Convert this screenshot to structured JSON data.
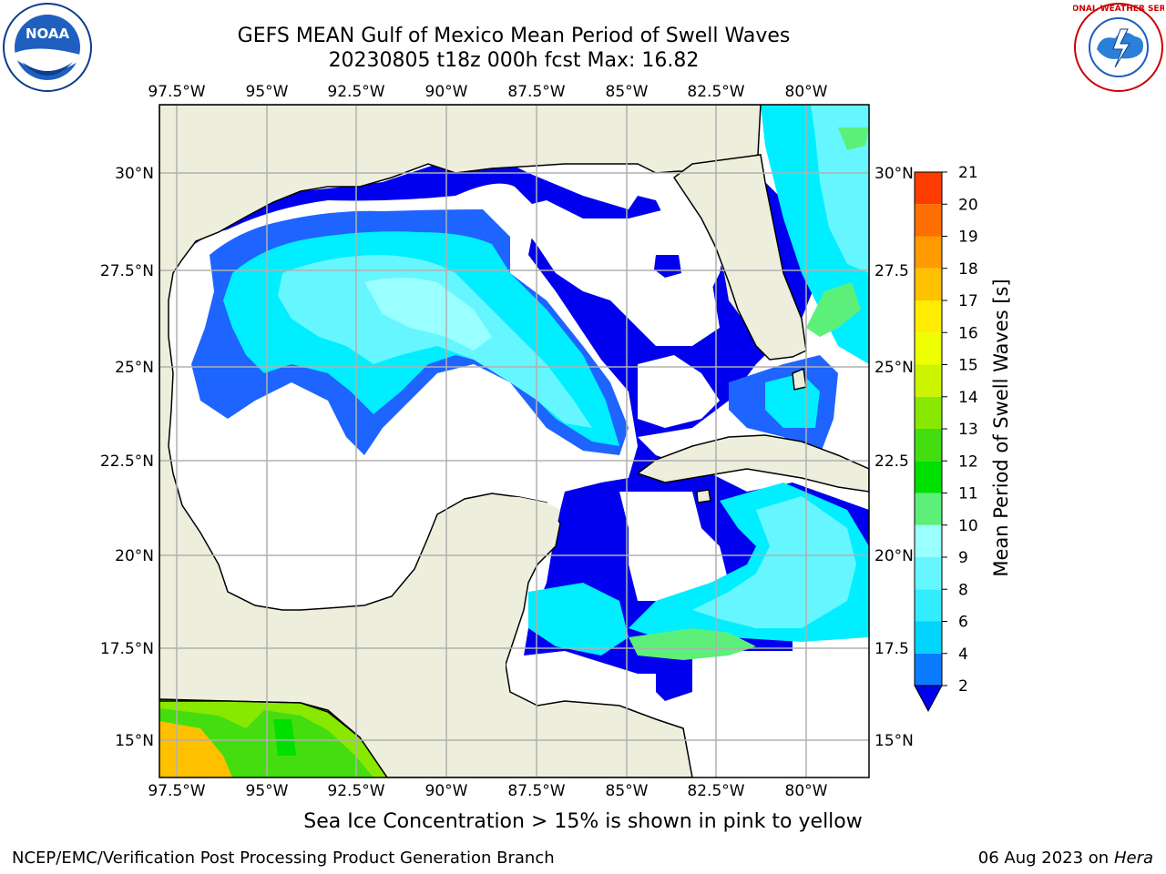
{
  "title_line1": "GEFS MEAN Gulf of Mexico Mean Period of Swell Waves",
  "title_line2": "20230805 t18z 000h fcst   Max: 16.82",
  "lon_labels": [
    "97.5°W",
    "95°W",
    "92.5°W",
    "90°W",
    "87.5°W",
    "85°W",
    "82.5°W",
    "80°W"
  ],
  "lat_labels_left": [
    "30°N",
    "27.5°N",
    "25°N",
    "22.5°N",
    "20°N",
    "17.5°N",
    "15°N"
  ],
  "lat_labels_right": [
    "30°N",
    "27.5",
    "25°N",
    "22.5",
    "20°N",
    "17.5",
    "15°N"
  ],
  "colorbar": {
    "label": "Mean Period of Swell Waves [s]",
    "ticks": [
      "2",
      "4",
      "6",
      "8",
      "9",
      "10",
      "11",
      "12",
      "13",
      "14",
      "15",
      "16",
      "17",
      "18",
      "19",
      "20",
      "21"
    ],
    "colors": [
      "#0a7bff",
      "#00d4ff",
      "#33ecff",
      "#66f6ff",
      "#99ffff",
      "#5cf07a",
      "#00e000",
      "#44dd10",
      "#88e800",
      "#ccf400",
      "#eeff00",
      "#ffec00",
      "#ffc000",
      "#ff9b00",
      "#ff6e00",
      "#ff3c00",
      "#ff0000"
    ],
    "extend_color": "#0000ee"
  },
  "note": "Sea Ice Concentration > 15% is shown in pink to yellow",
  "footer_left": "NCEP/EMC/Verification Post Processing Product Generation Branch",
  "footer_date": "06 Aug 2023 on",
  "footer_host": "Hera",
  "logos": {
    "left": "NOAA",
    "right": "NATIONAL WEATHER SERVICE"
  },
  "colors": {
    "land": "#eeeedd",
    "deep_blue": "#0000ee",
    "mid_blue": "#1e64ff",
    "cyan": "#00eeff",
    "light_cyan": "#66f6ff",
    "grid": "#b0b0b0"
  }
}
